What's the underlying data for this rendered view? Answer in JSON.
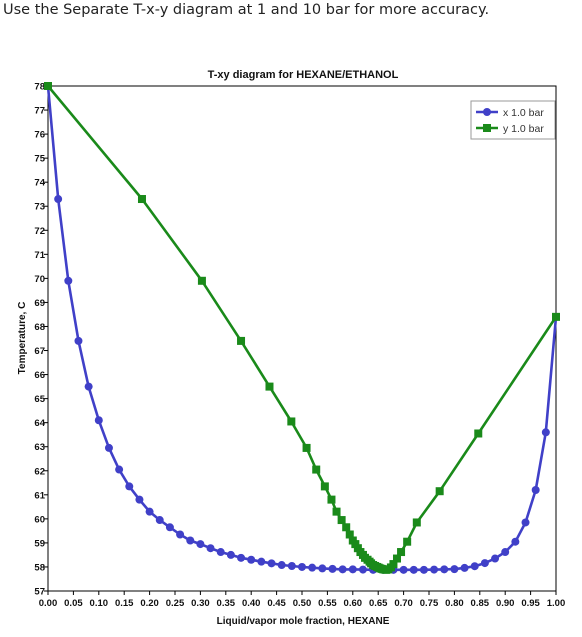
{
  "instruction": "Use the Separate T-x-y diagram at 1 and 10 bar for more accuracy.",
  "chart_data": {
    "type": "line",
    "title": "T-xy diagram for HEXANE/ETHANOL",
    "xlabel": "Liquid/vapor mole fraction, HEXANE",
    "ylabel": "Temperature, C",
    "xlim": [
      0,
      1
    ],
    "ylim": [
      57,
      78
    ],
    "x_ticks": [
      "0.00",
      "0.05",
      "0.10",
      "0.15",
      "0.20",
      "0.25",
      "0.30",
      "0.35",
      "0.40",
      "0.45",
      "0.50",
      "0.55",
      "0.60",
      "0.65",
      "0.70",
      "0.75",
      "0.80",
      "0.85",
      "0.90",
      "0.95",
      "1.00"
    ],
    "y_ticks": [
      "57",
      "58",
      "59",
      "60",
      "61",
      "62",
      "63",
      "64",
      "65",
      "66",
      "67",
      "68",
      "69",
      "70",
      "71",
      "72",
      "73",
      "74",
      "75",
      "76",
      "77",
      "78"
    ],
    "legend_position": "top-right",
    "series": [
      {
        "name": "x 1.0 bar",
        "color": "#4040c8",
        "marker": "circle",
        "points": [
          [
            0.0,
            78.0
          ],
          [
            0.02,
            73.3
          ],
          [
            0.04,
            69.9
          ],
          [
            0.06,
            67.4
          ],
          [
            0.08,
            65.5
          ],
          [
            0.1,
            64.1
          ],
          [
            0.12,
            62.95
          ],
          [
            0.14,
            62.05
          ],
          [
            0.16,
            61.35
          ],
          [
            0.18,
            60.8
          ],
          [
            0.2,
            60.3
          ],
          [
            0.22,
            59.95
          ],
          [
            0.24,
            59.65
          ],
          [
            0.26,
            59.35
          ],
          [
            0.28,
            59.1
          ],
          [
            0.3,
            58.95
          ],
          [
            0.32,
            58.78
          ],
          [
            0.34,
            58.62
          ],
          [
            0.36,
            58.5
          ],
          [
            0.38,
            58.38
          ],
          [
            0.4,
            58.3
          ],
          [
            0.42,
            58.22
          ],
          [
            0.44,
            58.15
          ],
          [
            0.46,
            58.08
          ],
          [
            0.48,
            58.04
          ],
          [
            0.5,
            58.0
          ],
          [
            0.52,
            57.97
          ],
          [
            0.54,
            57.94
          ],
          [
            0.56,
            57.92
          ],
          [
            0.58,
            57.9
          ],
          [
            0.6,
            57.9
          ],
          [
            0.62,
            57.89
          ],
          [
            0.64,
            57.88
          ],
          [
            0.66,
            57.88
          ],
          [
            0.68,
            57.88
          ],
          [
            0.7,
            57.88
          ],
          [
            0.72,
            57.88
          ],
          [
            0.74,
            57.88
          ],
          [
            0.76,
            57.89
          ],
          [
            0.78,
            57.9
          ],
          [
            0.8,
            57.91
          ],
          [
            0.82,
            57.96
          ],
          [
            0.84,
            58.03
          ],
          [
            0.86,
            58.16
          ],
          [
            0.88,
            58.35
          ],
          [
            0.9,
            58.62
          ],
          [
            0.92,
            59.05
          ],
          [
            0.94,
            59.85
          ],
          [
            0.96,
            61.2
          ],
          [
            0.98,
            63.6
          ],
          [
            1.0,
            68.4
          ]
        ]
      },
      {
        "name": "y 1.0 bar",
        "color": "#1a8a1a",
        "marker": "square",
        "points": [
          [
            0.0,
            78.0
          ],
          [
            0.185,
            73.3
          ],
          [
            0.303,
            69.9
          ],
          [
            0.38,
            67.4
          ],
          [
            0.436,
            65.5
          ],
          [
            0.479,
            64.05
          ],
          [
            0.509,
            62.95
          ],
          [
            0.528,
            62.05
          ],
          [
            0.545,
            61.35
          ],
          [
            0.558,
            60.8
          ],
          [
            0.568,
            60.3
          ],
          [
            0.578,
            59.95
          ],
          [
            0.587,
            59.65
          ],
          [
            0.594,
            59.35
          ],
          [
            0.6,
            59.1
          ],
          [
            0.605,
            58.95
          ],
          [
            0.61,
            58.78
          ],
          [
            0.615,
            58.62
          ],
          [
            0.62,
            58.5
          ],
          [
            0.624,
            58.38
          ],
          [
            0.629,
            58.3
          ],
          [
            0.633,
            58.22
          ],
          [
            0.636,
            58.15
          ],
          [
            0.64,
            58.08
          ],
          [
            0.644,
            58.04
          ],
          [
            0.648,
            58.0
          ],
          [
            0.651,
            57.97
          ],
          [
            0.654,
            57.94
          ],
          [
            0.657,
            57.92
          ],
          [
            0.66,
            57.9
          ],
          [
            0.663,
            57.89
          ],
          [
            0.666,
            57.88
          ],
          [
            0.67,
            57.9
          ],
          [
            0.675,
            57.98
          ],
          [
            0.68,
            58.12
          ],
          [
            0.687,
            58.35
          ],
          [
            0.695,
            58.62
          ],
          [
            0.707,
            59.05
          ],
          [
            0.726,
            59.85
          ],
          [
            0.771,
            61.15
          ],
          [
            0.847,
            63.55
          ],
          [
            1.0,
            68.4
          ]
        ]
      }
    ]
  }
}
